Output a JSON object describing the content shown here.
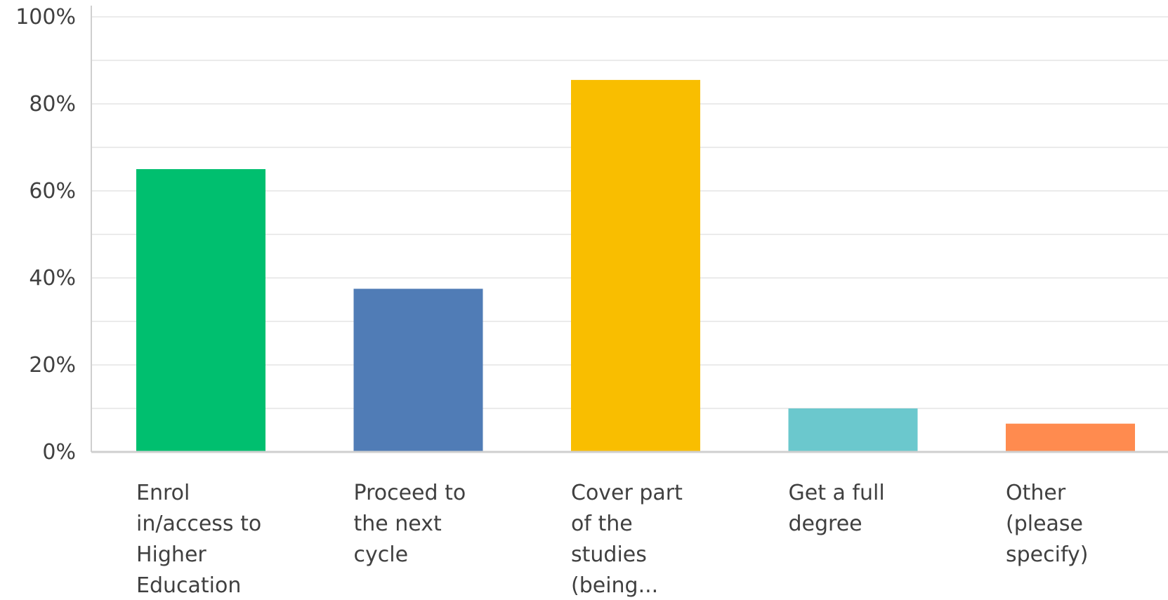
{
  "chart_data": {
    "type": "bar",
    "categories": [
      [
        "Enrol",
        "in/access to",
        "Higher",
        "Education"
      ],
      [
        "Proceed to",
        "the next",
        "cycle"
      ],
      [
        "Cover part",
        "of the",
        "studies",
        "(being..."
      ],
      [
        "Get a full",
        "degree"
      ],
      [
        "Other",
        "(please",
        "specify)"
      ]
    ],
    "values": [
      65,
      37.5,
      85.5,
      10,
      6.5
    ],
    "colors": [
      "#00BF6F",
      "#507CB6",
      "#F9BE00",
      "#6BC8CD",
      "#FF8B4F"
    ],
    "ylim": [
      0,
      100
    ],
    "yticks": [
      0,
      20,
      40,
      60,
      80,
      100
    ],
    "ytick_labels": [
      "0%",
      "20%",
      "40%",
      "60%",
      "80%",
      "100%"
    ],
    "minor_gridlines": [
      10,
      30,
      50,
      70,
      90
    ],
    "grid": true,
    "legend": "none",
    "title": "",
    "xlabel": "",
    "ylabel": ""
  }
}
